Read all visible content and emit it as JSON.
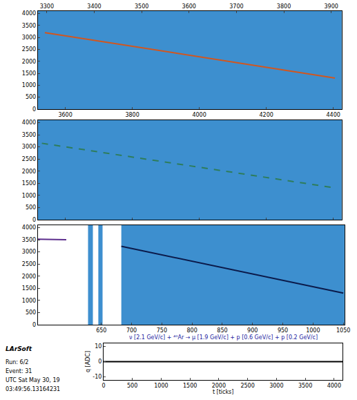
{
  "chart_data": [
    {
      "type": "line",
      "xlim": [
        3518,
        4425
      ],
      "xticks": [
        3600,
        3800,
        4000,
        4200,
        4400
      ],
      "x2lim": [
        3281,
        3922
      ],
      "x2ticks": [
        3300,
        3400,
        3500,
        3600,
        3700,
        3800,
        3900
      ],
      "ylim": [
        0,
        4100
      ],
      "yticks": [
        0,
        500,
        1000,
        1500,
        2000,
        2500,
        3000,
        3500,
        4000
      ],
      "series": [
        {
          "x": [
            3539,
            4405
          ],
          "values": [
            3200,
            1300
          ],
          "color": "#d2561e",
          "line_style": "solid"
        }
      ]
    },
    {
      "type": "line",
      "tick_labels": "y",
      "xlim": [
        3518,
        4425
      ],
      "xticks": [
        3600,
        3800,
        4000,
        4200,
        4400
      ],
      "ylim": [
        0,
        4100
      ],
      "yticks": [
        0,
        500,
        1000,
        1500,
        2000,
        2500,
        3000,
        3500,
        4000
      ],
      "series": [
        {
          "x": [
            3530,
            4410
          ],
          "values": [
            3150,
            1300
          ],
          "color": "#2e7d5b",
          "line_style": "dashed"
        }
      ]
    },
    {
      "type": "line",
      "xlim": [
        545,
        1052
      ],
      "xticks": [
        650,
        700,
        750,
        800,
        850,
        900,
        950,
        1000,
        1050
      ],
      "ylim": [
        0,
        4100
      ],
      "yticks": [
        0,
        500,
        1000,
        1500,
        2000,
        2500,
        3000,
        3500,
        4000
      ],
      "dead_regions": [
        [
          545,
          628
        ],
        [
          636,
          645
        ],
        [
          652,
          683
        ]
      ],
      "series": [
        {
          "x": [
            545,
            592
          ],
          "values": [
            3520,
            3500
          ],
          "color": "#5b2c8c",
          "line_style": "solid"
        },
        {
          "x": [
            683,
            1050
          ],
          "values": [
            3230,
            1300
          ],
          "color": "#0b1a4a",
          "line_style": "solid"
        }
      ]
    },
    {
      "type": "line",
      "title": "ν [2.1 GeV/c] + ⁴⁰Ar → μ [1.9 GeV/c] + p [0.6 GeV/c] + p [0.2 GeV/c]",
      "xlabel": "t [ticks]",
      "ylabel": "q [ADC]",
      "xlim": [
        0,
        4150
      ],
      "xticks": [
        0,
        500,
        1000,
        1500,
        2000,
        2500,
        3000,
        3500,
        4000
      ],
      "ylim": [
        -12,
        12
      ],
      "yticks": [
        -10,
        0,
        10
      ],
      "series": [
        {
          "x": [
            0,
            4150
          ],
          "values": [
            0,
            0
          ],
          "color": "#000000",
          "line_style": "solid"
        }
      ]
    }
  ],
  "event_info": {
    "title": "LArSoft",
    "lines": [
      "Run: 6/2",
      "Event: 31",
      "UTC Sat May 30, 19",
      "03:49:56.13164231"
    ]
  }
}
